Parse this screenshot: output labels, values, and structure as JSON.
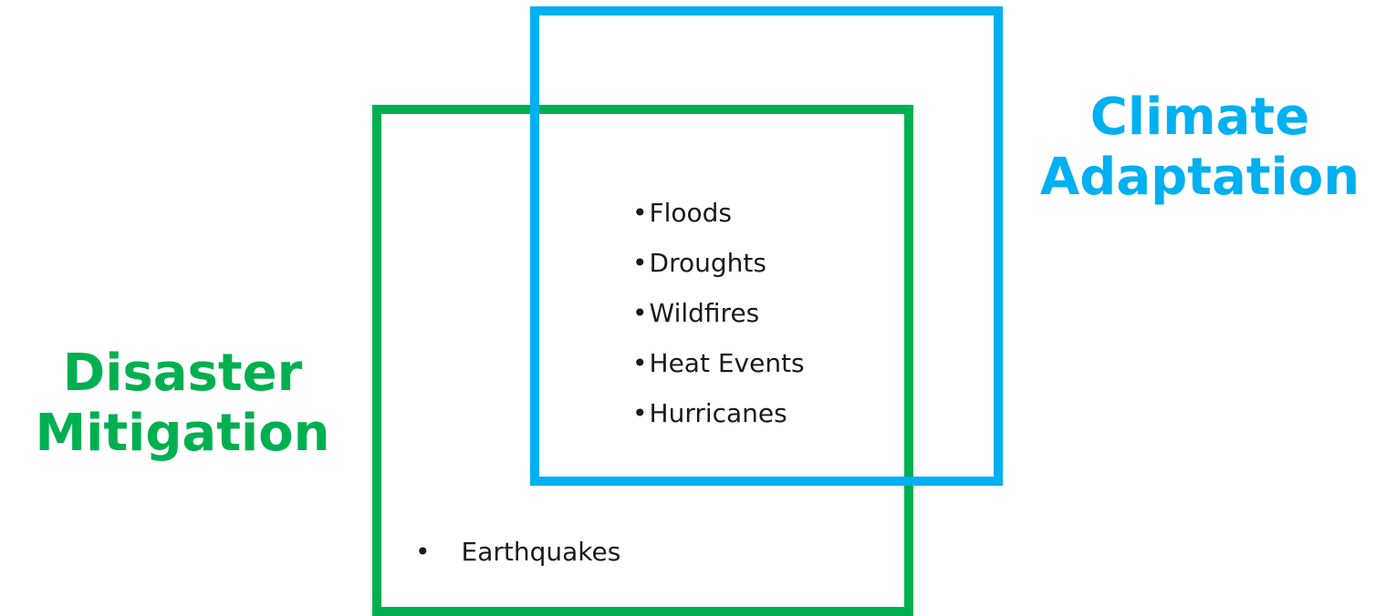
{
  "diagram": {
    "left_region": {
      "label_lines": [
        "Disaster",
        "Mitigation"
      ],
      "color": "#00b050"
    },
    "right_region": {
      "label_lines": [
        "Climate",
        "Adaptation"
      ],
      "color": "#00b0f0"
    },
    "bullet_symbol": "•",
    "overlap_items": [
      "Floods",
      "Droughts",
      "Wildfires",
      "Heat Events",
      "Hurricanes"
    ],
    "left_only_items": [
      "Earthquakes"
    ]
  }
}
